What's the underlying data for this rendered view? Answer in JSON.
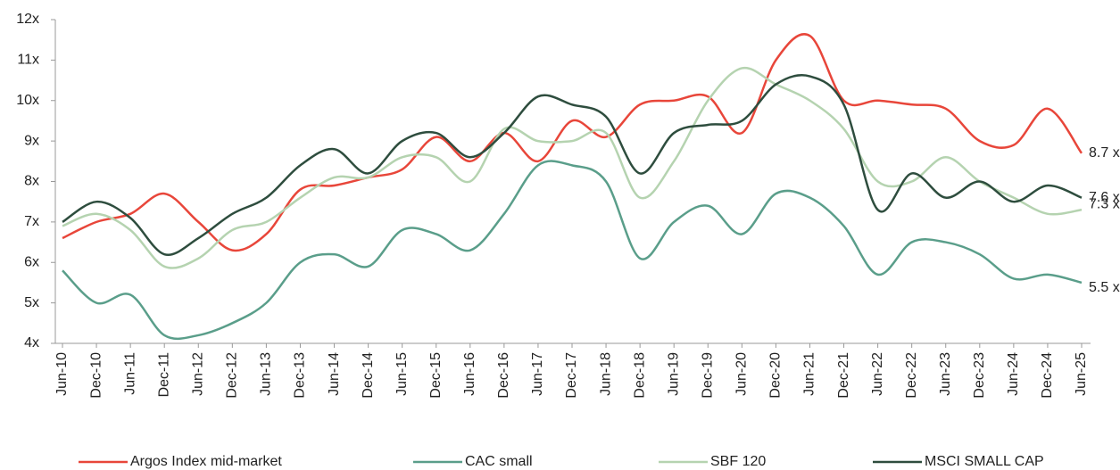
{
  "chart_data": {
    "type": "line",
    "categories": [
      "Jun-10",
      "Dec-10",
      "Jun-11",
      "Dec-11",
      "Jun-12",
      "Dec-12",
      "Jun-13",
      "Dec-13",
      "Jun-14",
      "Dec-14",
      "Jun-15",
      "Dec-15",
      "Jun-16",
      "Dec-16",
      "Jun-17",
      "Dec-17",
      "Jun-18",
      "Dec-18",
      "Jun-19",
      "Dec-19",
      "Jun-20",
      "Dec-20",
      "Jun-21",
      "Dec-21",
      "Jun-22",
      "Dec-22",
      "Jun-23",
      "Dec-23",
      "Jun-24",
      "Dec-24",
      "Jun-25"
    ],
    "ylim": [
      4,
      12
    ],
    "yticks": [
      {
        "value": 4,
        "label": "4x"
      },
      {
        "value": 5,
        "label": "5x"
      },
      {
        "value": 6,
        "label": "6x"
      },
      {
        "value": 7,
        "label": "7x"
      },
      {
        "value": 8,
        "label": "8x"
      },
      {
        "value": 9,
        "label": "9x"
      },
      {
        "value": 10,
        "label": "10x"
      },
      {
        "value": 11,
        "label": "11x"
      },
      {
        "value": 12,
        "label": "12x"
      }
    ],
    "legend": "bottom",
    "series": [
      {
        "name": "Argos Index mid-market",
        "color": "#e8463a",
        "values": [
          6.6,
          7.0,
          7.2,
          7.7,
          7.0,
          6.3,
          6.7,
          7.8,
          7.9,
          8.1,
          8.3,
          9.1,
          8.5,
          9.2,
          8.5,
          9.5,
          9.1,
          9.9,
          10.0,
          10.1,
          9.2,
          11.0,
          11.6,
          10.0,
          10.0,
          9.9,
          9.8,
          9.0,
          8.9,
          9.8,
          8.7
        ],
        "value_labels": [
          null,
          null,
          null,
          null,
          null,
          null,
          null,
          null,
          null,
          null,
          null,
          null,
          null,
          null,
          null,
          null,
          null,
          null,
          null,
          null,
          null,
          null,
          null,
          null,
          null,
          null,
          null,
          null,
          null,
          null,
          "8.7 x"
        ]
      },
      {
        "name": "CAC small",
        "color": "#5a9e8a",
        "values": [
          5.8,
          5.0,
          5.2,
          4.2,
          4.2,
          4.5,
          5.0,
          6.0,
          6.2,
          5.9,
          6.8,
          6.7,
          6.3,
          7.2,
          8.4,
          8.4,
          8.0,
          6.1,
          7.0,
          7.4,
          6.7,
          7.7,
          7.6,
          6.9,
          5.7,
          6.5,
          6.5,
          6.2,
          5.6,
          5.7,
          5.5
        ],
        "value_labels": [
          null,
          null,
          null,
          null,
          null,
          null,
          null,
          null,
          null,
          null,
          null,
          null,
          null,
          null,
          null,
          null,
          null,
          null,
          null,
          null,
          null,
          null,
          null,
          null,
          null,
          null,
          null,
          null,
          null,
          null,
          "5.5 x"
        ]
      },
      {
        "name": "SBF 120",
        "color": "#b5d3b0",
        "values": [
          6.9,
          7.2,
          6.8,
          5.9,
          6.1,
          6.8,
          7.0,
          7.6,
          8.1,
          8.1,
          8.6,
          8.6,
          8.0,
          9.3,
          9.0,
          9.0,
          9.2,
          7.6,
          8.5,
          10.0,
          10.8,
          10.4,
          10.0,
          9.3,
          8.0,
          8.0,
          8.6,
          8.0,
          7.6,
          7.2,
          7.3
        ],
        "value_labels": [
          null,
          null,
          null,
          null,
          null,
          null,
          null,
          null,
          null,
          null,
          null,
          null,
          null,
          null,
          null,
          null,
          null,
          null,
          null,
          null,
          null,
          null,
          null,
          null,
          null,
          null,
          null,
          null,
          null,
          null,
          "7.3 x"
        ]
      },
      {
        "name": "MSCI SMALL CAP",
        "color": "#2e4d3e",
        "values": [
          7.0,
          7.5,
          7.1,
          6.2,
          6.6,
          7.2,
          7.6,
          8.4,
          8.8,
          8.2,
          9.0,
          9.2,
          8.6,
          9.2,
          10.1,
          9.9,
          9.6,
          8.2,
          9.2,
          9.4,
          9.5,
          10.4,
          10.6,
          9.9,
          7.3,
          8.2,
          7.6,
          8.0,
          7.5,
          7.9,
          7.6
        ],
        "value_labels": [
          null,
          null,
          null,
          null,
          null,
          null,
          null,
          null,
          null,
          null,
          null,
          null,
          null,
          null,
          null,
          null,
          null,
          null,
          null,
          null,
          null,
          null,
          null,
          null,
          null,
          null,
          null,
          null,
          null,
          null,
          "7.6 x"
        ]
      }
    ]
  }
}
